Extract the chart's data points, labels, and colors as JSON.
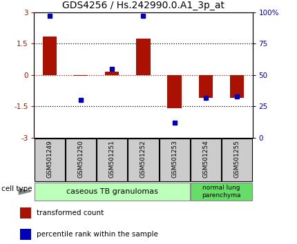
{
  "title": "GDS4256 / Hs.242990.0.A1_3p_at",
  "samples": [
    "GSM501249",
    "GSM501250",
    "GSM501251",
    "GSM501252",
    "GSM501253",
    "GSM501254",
    "GSM501255"
  ],
  "red_values": [
    1.85,
    -0.05,
    0.15,
    1.75,
    -1.6,
    -1.1,
    -1.1
  ],
  "blue_values": [
    97,
    30,
    55,
    97,
    12,
    32,
    33
  ],
  "ylim_left": [
    -3,
    3
  ],
  "ylim_right": [
    0,
    100
  ],
  "yticks_left": [
    -3,
    -1.5,
    0,
    1.5,
    3
  ],
  "yticks_right": [
    0,
    25,
    50,
    75,
    100
  ],
  "ytick_labels_right": [
    "0",
    "25",
    "50",
    "75",
    "100%"
  ],
  "red_color": "#aa1100",
  "blue_color": "#0000bb",
  "bar_width": 0.45,
  "blue_marker_size": 5,
  "group1_label": "caseous TB granulomas",
  "group2_label": "normal lung\nparenchyma",
  "group1_color": "#bbffbb",
  "group2_color": "#66dd66",
  "cell_type_label": "cell type",
  "legend_red_label": "transformed count",
  "legend_blue_label": "percentile rank within the sample",
  "title_fontsize": 10,
  "tick_label_fontsize": 7.5,
  "sample_fontsize": 6.5,
  "group_fontsize": 8,
  "legend_fontsize": 7.5
}
